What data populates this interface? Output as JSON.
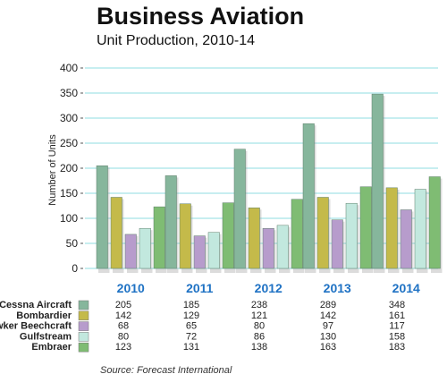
{
  "chart_data": {
    "type": "bar",
    "title": "Business Aviation",
    "subtitle": "Unit Production, 2010-14",
    "ylabel": "Number of Units",
    "xlabel": "",
    "categories": [
      "2010",
      "2011",
      "2012",
      "2013",
      "2014"
    ],
    "ylim": [
      0,
      400
    ],
    "yticks": [
      0,
      50,
      100,
      150,
      200,
      250,
      300,
      350,
      400
    ],
    "grid": true,
    "series": [
      {
        "name": "Cessna Aircraft",
        "color": "#86b69c",
        "values": [
          205,
          185,
          238,
          289,
          348
        ]
      },
      {
        "name": "Bombardier",
        "color": "#c4ba4a",
        "values": [
          142,
          129,
          121,
          142,
          161
        ]
      },
      {
        "name": "Hawker Beechcraft",
        "color": "#b79ccc",
        "values": [
          68,
          65,
          80,
          97,
          117
        ]
      },
      {
        "name": "Gulfstream",
        "color": "#c2e8de",
        "values": [
          80,
          72,
          86,
          130,
          158
        ]
      },
      {
        "name": "Embraer",
        "color": "#7fbc73",
        "values": [
          123,
          131,
          138,
          163,
          183
        ]
      }
    ],
    "source": "Source:  Forecast International"
  }
}
